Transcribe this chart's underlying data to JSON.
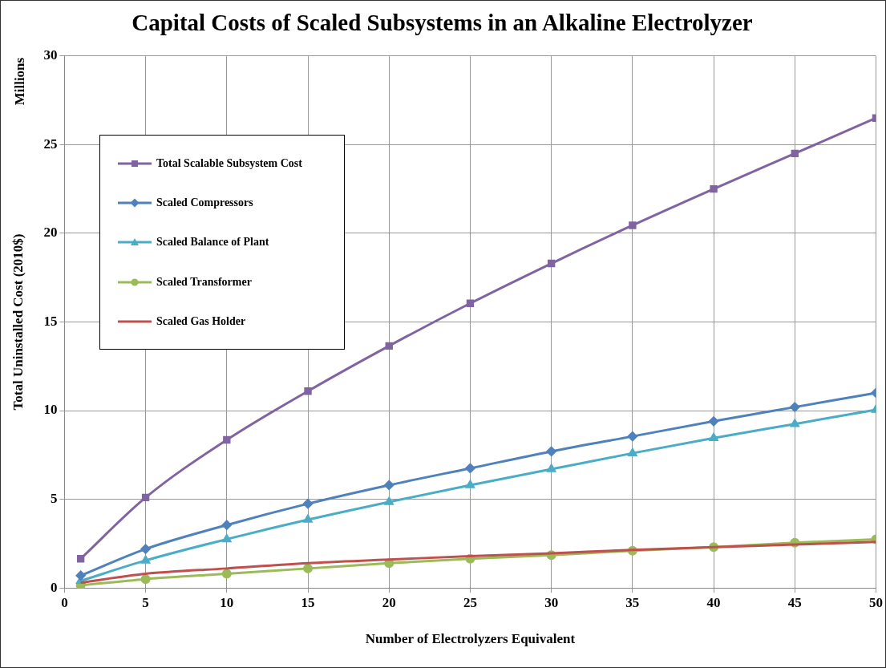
{
  "chart_data": {
    "type": "line",
    "title": "Capital Costs of Scaled Subsystems in an Alkaline Electrolyzer",
    "xlabel": "Number of Electrolyzers Equivalent",
    "ylabel": "Total Uninstalled Cost (2010$)",
    "annotations": [
      "Millions"
    ],
    "x": [
      1,
      5,
      10,
      15,
      20,
      25,
      30,
      35,
      40,
      45,
      50
    ],
    "series": [
      {
        "name": "Total Scalable Subsystem Cost",
        "color": "#8064a2",
        "marker": "square",
        "values": [
          1.65,
          5.1,
          8.35,
          11.1,
          13.65,
          16.05,
          18.3,
          20.45,
          22.5,
          24.5,
          26.5
        ]
      },
      {
        "name": "Scaled Compressors",
        "color": "#4f81bd",
        "marker": "diamond",
        "values": [
          0.7,
          2.2,
          3.55,
          4.75,
          5.8,
          6.75,
          7.7,
          8.55,
          9.4,
          10.2,
          11
        ]
      },
      {
        "name": "Scaled Balance of Plant",
        "color": "#4bacc6",
        "marker": "triangle",
        "values": [
          0.4,
          1.55,
          2.75,
          3.85,
          4.85,
          5.8,
          6.7,
          7.6,
          8.45,
          9.25,
          10.05
        ]
      },
      {
        "name": "Scaled Transformer",
        "color": "#9bbb59",
        "marker": "circle",
        "values": [
          0.15,
          0.5,
          0.8,
          1.1,
          1.4,
          1.65,
          1.85,
          2.1,
          2.3,
          2.55,
          2.75
        ]
      },
      {
        "name": "Scaled Gas Holder",
        "color": "#c0504d",
        "marker": "none",
        "values": [
          0.3,
          0.8,
          1.1,
          1.4,
          1.6,
          1.8,
          1.95,
          2.15,
          2.3,
          2.45,
          2.6
        ]
      }
    ],
    "xlim": [
      0,
      50
    ],
    "xticks": [
      0,
      5,
      10,
      15,
      20,
      25,
      30,
      35,
      40,
      45,
      50
    ],
    "ylim": [
      0,
      30
    ],
    "yticks": [
      0,
      5,
      10,
      15,
      20,
      25,
      30
    ],
    "grid": true,
    "legend": "top left"
  }
}
